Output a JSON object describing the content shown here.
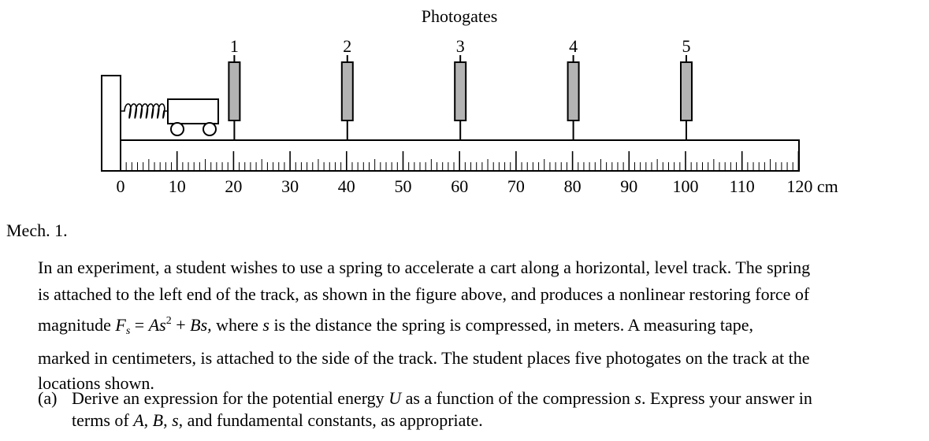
{
  "figure": {
    "title": "Photogates",
    "gate_labels": [
      "1",
      "2",
      "3",
      "4",
      "5"
    ],
    "gate_positions_cm": [
      20,
      40,
      60,
      80,
      100
    ],
    "tape_tick_labels": [
      "0",
      "10",
      "20",
      "30",
      "40",
      "50",
      "60",
      "70",
      "80",
      "90",
      "100",
      "110",
      "120 cm"
    ],
    "tape_range_cm": [
      0,
      120
    ],
    "gate_color": "#b3b3b3"
  },
  "problem": {
    "label": "Mech. 1.",
    "para": {
      "line1": "In an experiment, a student wishes to use a spring to accelerate a cart along a horizontal, level track. The spring",
      "line2": "is attached to the left end of the track, as shown in the figure above, and produces a nonlinear restoring force of",
      "line3_pre": "magnitude ",
      "F": "F",
      "F_sub": "s",
      "eq_mid": " = ",
      "A": "As",
      "A_sup": "2",
      "plus": " + ",
      "Bs": "Bs,",
      "where": " where ",
      "s": "s",
      "line3_post": " is the distance the spring is compressed, in meters. A measuring tape,",
      "line4": "marked in centimeters, is attached to the side of the track. The student places five photogates on the track at the",
      "line5": "locations shown."
    },
    "part_a": {
      "tag": "(a)",
      "text1_pre": "Derive an expression for the potential energy ",
      "U": "U",
      "text1_mid": " as a function of the compression ",
      "s": "s",
      "text1_post": ". Express your answer in",
      "text2_pre": "terms of ",
      "A": "A",
      "comma1": ", ",
      "B": "B",
      "comma2": ", ",
      "s2": "s",
      "text2_post": ", and fundamental constants, as appropriate."
    }
  }
}
